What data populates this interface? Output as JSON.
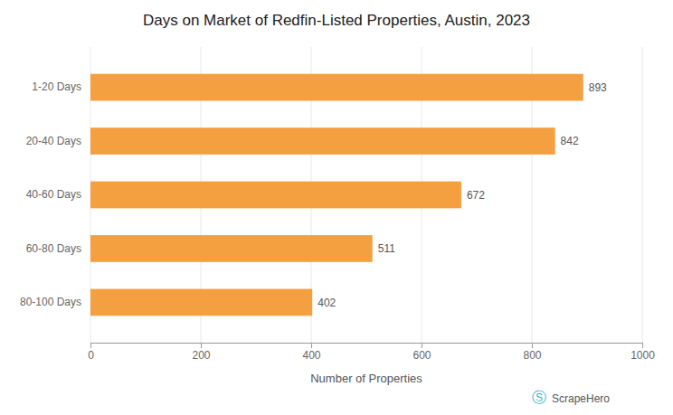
{
  "chart_data": {
    "type": "bar",
    "orientation": "horizontal",
    "title": "Days on Market of Redfin-Listed Properties, Austin, 2023",
    "categories": [
      "1-20 Days",
      "20-40 Days",
      "40-60 Days",
      "60-80 Days",
      "80-100 Days"
    ],
    "values": [
      893,
      842,
      672,
      511,
      402
    ],
    "color": "#F5A040",
    "xlabel": "Number of Properties",
    "xlim": [
      0,
      1000
    ],
    "xticks": [
      0,
      200,
      400,
      600,
      800,
      1000
    ],
    "grid": true,
    "data_labels": true,
    "annotations": [
      "Ⓢ",
      "ScrapeHero"
    ]
  }
}
